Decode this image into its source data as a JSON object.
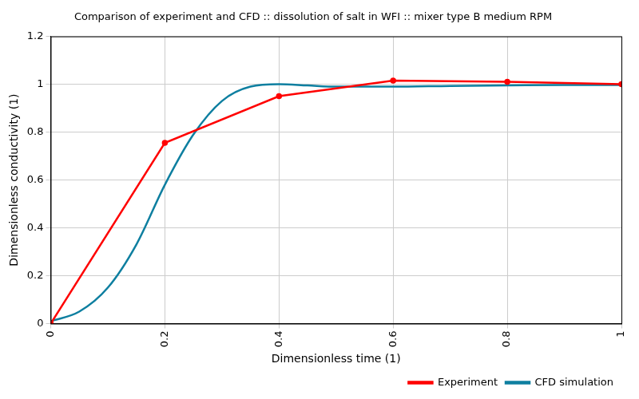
{
  "chart_data": {
    "type": "line",
    "title": "Comparison of experiment and CFD :: dissolution of salt in WFI :: mixer type B medium RPM",
    "x_label": "Dimensionless time (1)",
    "y_label": "Dimensionless conductivity (1)",
    "series": [
      {
        "name": "Experiment",
        "color": "#ff0000",
        "marker": "circle",
        "x": [
          0,
          0.2,
          0.4,
          0.6,
          0.8,
          1
        ],
        "values": [
          0,
          0.755,
          0.95,
          1.015,
          1.01,
          1.0
        ]
      },
      {
        "name": "CFD simulation",
        "color": "#0e7fa0",
        "x": [
          0,
          0.05,
          0.1,
          0.15,
          0.2,
          0.25,
          0.3,
          0.35,
          0.4,
          0.45,
          0.5,
          0.55,
          0.6,
          0.7,
          0.8,
          0.9,
          1
        ],
        "values": [
          0.01,
          0.05,
          0.15,
          0.33,
          0.58,
          0.79,
          0.93,
          0.99,
          1.0,
          0.995,
          0.99,
          0.99,
          0.99,
          0.993,
          0.995,
          0.997,
          0.997
        ]
      }
    ],
    "xlim": [
      0,
      1
    ],
    "xticks": [
      0,
      0.2,
      0.4,
      0.6,
      0.8,
      1
    ],
    "ylim": [
      0,
      1.2
    ],
    "yticks": [
      0,
      0.2,
      0.4,
      0.6,
      0.8,
      1,
      1.2
    ],
    "grid": true,
    "legend": "lower right"
  }
}
